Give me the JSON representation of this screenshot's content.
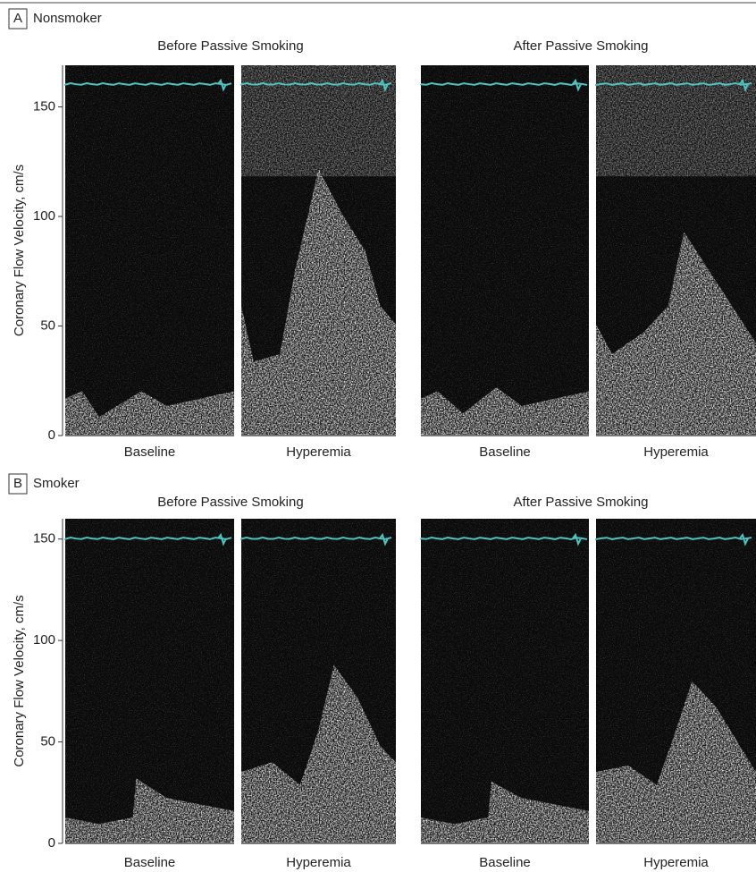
{
  "panels": [
    {
      "label": "A",
      "group": "Nonsmoker",
      "y_axis_label": "Coronary Flow Velocity, cm/s",
      "ylim": [
        0,
        169
      ],
      "yticks": [
        0,
        50,
        100,
        150
      ],
      "titles": [
        "Before Passive Smoking",
        "After Passive Smoking"
      ],
      "x_labels": [
        "Baseline",
        "Hyperemia",
        "Baseline",
        "Hyperemia"
      ]
    },
    {
      "label": "B",
      "group": "Smoker",
      "y_axis_label": "Coronary Flow Velocity, cm/s",
      "ylim": [
        0,
        160
      ],
      "yticks": [
        0,
        50,
        100,
        150
      ],
      "titles": [
        "Before Passive Smoking",
        "After Passive Smoking"
      ],
      "x_labels": [
        "Baseline",
        "Hyperemia",
        "Baseline",
        "Hyperemia"
      ]
    }
  ]
}
